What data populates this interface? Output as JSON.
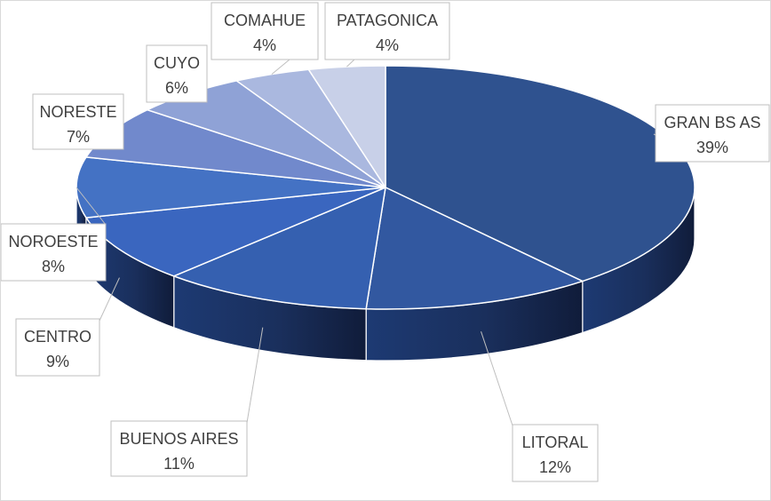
{
  "chart_data": {
    "type": "pie",
    "style": "3d",
    "title": "",
    "legend": "none",
    "data_labels": "callouts with category name and percentage",
    "slices": [
      {
        "label": "GRAN BS AS",
        "value": 39,
        "value_label": "39%",
        "color": "#2f528f"
      },
      {
        "label": "LITORAL",
        "value": 12,
        "value_label": "12%",
        "color": "#3258a0"
      },
      {
        "label": "BUENOS AIRES",
        "value": 11,
        "value_label": "11%",
        "color": "#3560b0"
      },
      {
        "label": "CENTRO",
        "value": 9,
        "value_label": "9%",
        "color": "#3a66bf"
      },
      {
        "label": "NOROESTE",
        "value": 8,
        "value_label": "8%",
        "color": "#4472c4"
      },
      {
        "label": "NORESTE",
        "value": 7,
        "value_label": "7%",
        "color": "#7189cc"
      },
      {
        "label": "CUYO",
        "value": 6,
        "value_label": "6%",
        "color": "#8fa2d6"
      },
      {
        "label": "COMAHUE",
        "value": 4,
        "value_label": "4%",
        "color": "#aab8df"
      },
      {
        "label": "PATAGONICA",
        "value": 4,
        "value_label": "4%",
        "color": "#c8d0e8"
      }
    ]
  }
}
